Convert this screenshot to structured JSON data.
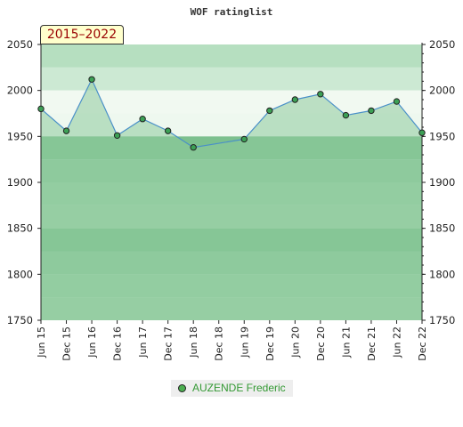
{
  "badge": "2015–2022",
  "colors": {
    "band_top": "#b6dfc0",
    "band_light": "#eef8ef",
    "band_mid": "#8ecb9d",
    "band_dark": "#7cc08e",
    "line": "#4a90c8",
    "marker_fill": "#3ca055",
    "legend_text": "#339933"
  },
  "chart_data": {
    "type": "line",
    "title": "WOF ratinglist",
    "xlabel": "",
    "ylabel": "",
    "ylim": [
      1750,
      2050
    ],
    "yticks": [
      1750,
      1800,
      1850,
      1900,
      1950,
      2000,
      2050
    ],
    "categories": [
      "Jun 15",
      "Dec 15",
      "Jun 16",
      "Dec 16",
      "Jun 17",
      "Dec 17",
      "Jun 18",
      "Dec 18",
      "Jun 19",
      "Dec 19",
      "Jun 20",
      "Dec 20",
      "Jun 21",
      "Dec 21",
      "Jun 22",
      "Dec 22"
    ],
    "series": [
      {
        "name": "AUZENDE Frederic",
        "values": [
          1980,
          1956,
          2012,
          1951,
          1969,
          1956,
          1938,
          null,
          1947,
          1978,
          1990,
          1996,
          1973,
          1978,
          1988,
          1954
        ]
      }
    ],
    "grid": false,
    "legend_position": "bottom-center"
  }
}
